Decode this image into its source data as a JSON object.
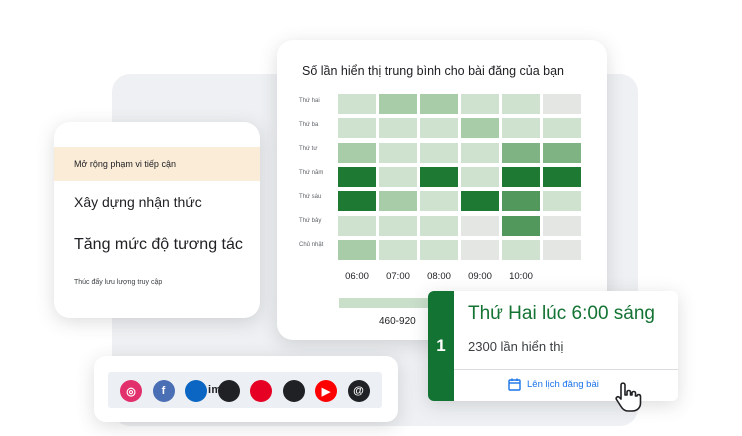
{
  "goals": {
    "options": [
      "Mở rộng phạm vi tiếp cận",
      "Xây dựng nhận thức",
      "Tăng mức độ tương tác",
      "Thúc đẩy lưu lượng truy cập"
    ],
    "selected_index": 0
  },
  "heatmap": {
    "title": "Số lần hiển thị trung bình cho bài đăng của bạn",
    "days": [
      "Thứ hai",
      "Thứ ba",
      "Thứ tư",
      "Thứ năm",
      "Thứ sáu",
      "Thứ bảy",
      "Chủ nhật"
    ],
    "hours": [
      "06:00",
      "07:00",
      "08:00",
      "09:00",
      "10:00",
      ""
    ],
    "legend_label": "460-920",
    "levels": [
      [
        1,
        2,
        2,
        1,
        1,
        0
      ],
      [
        1,
        1,
        1,
        2,
        1,
        1
      ],
      [
        2,
        1,
        1,
        1,
        3,
        3
      ],
      [
        5,
        1,
        5,
        1,
        5,
        5
      ],
      [
        5,
        2,
        1,
        5,
        4,
        1
      ],
      [
        1,
        1,
        1,
        0,
        4,
        0
      ],
      [
        2,
        1,
        1,
        0,
        1,
        0
      ]
    ],
    "level_colors": [
      "#e4e6e4",
      "#cfe1cf",
      "#a7cca7",
      "#7fb383",
      "#52985c",
      "#1e7a32"
    ]
  },
  "top_slot": {
    "rank": "1",
    "title": "Thứ Hai lúc 6:00 sáng",
    "impressions": "2300 lần hiển thị",
    "schedule_label": "Lên lịch đăng bài"
  },
  "social": {
    "watermark": "imPX",
    "icons": [
      {
        "name": "instagram-icon",
        "color": "#e1306c",
        "glyph": "◎"
      },
      {
        "name": "facebook-icon",
        "color": "#4a6fb5",
        "glyph": "f"
      },
      {
        "name": "linkedin-icon",
        "color": "#0a66c2",
        "glyph": ""
      },
      {
        "name": "tiktok-icon",
        "color": "#202124",
        "glyph": ""
      },
      {
        "name": "pinterest-icon",
        "color": "#e60023",
        "glyph": ""
      },
      {
        "name": "x-icon",
        "color": "#202124",
        "glyph": ""
      },
      {
        "name": "youtube-icon",
        "color": "#ff0000",
        "glyph": "▶"
      },
      {
        "name": "threads-icon",
        "color": "#202124",
        "glyph": "@"
      }
    ]
  }
}
